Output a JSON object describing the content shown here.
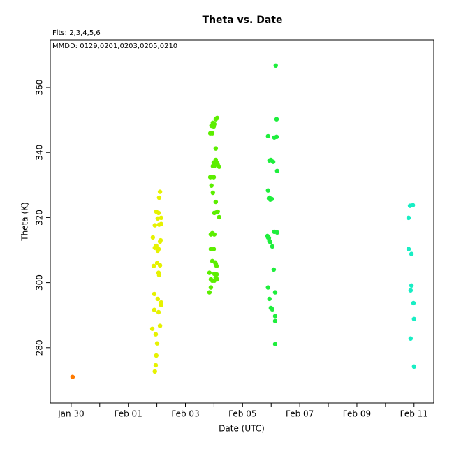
{
  "chart_data": {
    "type": "scatter",
    "title": "Theta  vs. Date",
    "annotations": [
      "Flts: 2,3,4,5,6",
      "MMDD: 0129,0201,0203,0205,0210"
    ],
    "x_label": "Date (UTC)",
    "y_label": "Theta (K)",
    "xlim": [
      29.27,
      42.69
    ],
    "ylim": [
      263.0,
      374.6
    ],
    "xticks": [
      {
        "value": 30,
        "label": "Jan 30"
      },
      {
        "value": 32,
        "label": "Feb 01"
      },
      {
        "value": 34,
        "label": "Feb 03"
      },
      {
        "value": 36,
        "label": "Feb 05"
      },
      {
        "value": 38,
        "label": "Feb 07"
      },
      {
        "value": 40,
        "label": "Feb 09"
      },
      {
        "value": 42,
        "label": "Feb 11"
      }
    ],
    "xminor_ticks": [
      31,
      33,
      35,
      37,
      39,
      41
    ],
    "yticks": [
      280,
      300,
      320,
      340,
      360
    ],
    "series": [
      {
        "color": "#ff7a00",
        "x": [
          30.05
        ],
        "values": [
          271.0
        ]
      },
      {
        "color": "#e6f200",
        "x": [
          33.11,
          33.08,
          32.98,
          33.06,
          33.15,
          33.03,
          32.93,
          33.08,
          33.15,
          32.86,
          33.11,
          33.13,
          32.98,
          32.93,
          33.03,
          33.06,
          33.01,
          32.89,
          33.11,
          33.06,
          33.08,
          32.91,
          33.03,
          33.15,
          33.15,
          32.91,
          33.06,
          33.11,
          32.84,
          32.96,
          33.01,
          32.98,
          32.96,
          32.93
        ],
        "values": [
          327.9,
          326.1,
          321.8,
          321.4,
          319.9,
          319.7,
          317.6,
          317.8,
          318.0,
          313.9,
          312.6,
          313.0,
          311.3,
          310.7,
          309.8,
          310.3,
          306.0,
          305.1,
          305.3,
          303.0,
          302.3,
          296.5,
          295.0,
          293.9,
          293.1,
          291.6,
          290.9,
          286.7,
          285.8,
          284.1,
          281.3,
          277.6,
          274.6,
          272.7
        ]
      },
      {
        "color": "#5cee00",
        "x": [
          35.11,
          35.06,
          34.96,
          35.01,
          34.91,
          34.99,
          34.87,
          34.94,
          35.06,
          35.06,
          34.99,
          35.09,
          35.13,
          35.01,
          35.18,
          34.96,
          34.87,
          34.99,
          34.91,
          34.96,
          35.06,
          35.09,
          35.01,
          35.13,
          35.18,
          34.94,
          34.89,
          35.01,
          34.99,
          34.89,
          34.94,
          35.06,
          35.09,
          35.04,
          34.84,
          35.01,
          35.09,
          34.89,
          35.06,
          35.11,
          35.01,
          34.94,
          34.89,
          34.84
        ],
        "values": [
          350.6,
          350.2,
          349.1,
          348.7,
          348.2,
          348.0,
          345.9,
          345.9,
          341.2,
          337.7,
          336.9,
          336.9,
          336.2,
          335.8,
          335.6,
          335.8,
          332.4,
          332.4,
          329.8,
          327.6,
          324.8,
          321.6,
          321.4,
          321.8,
          320.1,
          315.2,
          314.8,
          314.8,
          310.3,
          310.3,
          306.6,
          305.8,
          305.1,
          306.2,
          303.0,
          302.7,
          302.5,
          301.0,
          301.5,
          301.0,
          300.6,
          300.6,
          298.5,
          297.0
        ]
      },
      {
        "color": "#1eee3c",
        "x": [
          37.16,
          37.19,
          37.19,
          37.11,
          36.89,
          36.99,
          36.94,
          37.07,
          37.21,
          36.89,
          36.97,
          36.92,
          37.02,
          36.94,
          37.11,
          37.21,
          36.87,
          36.89,
          36.94,
          36.92,
          36.97,
          37.04,
          37.09,
          36.89,
          37.14,
          36.94,
          36.99,
          37.04,
          37.14,
          37.14,
          37.14
        ],
        "values": [
          366.7,
          350.2,
          344.8,
          344.6,
          345.0,
          337.7,
          337.5,
          337.1,
          334.3,
          328.3,
          325.5,
          325.9,
          325.7,
          326.1,
          315.6,
          315.4,
          314.3,
          313.9,
          312.8,
          313.7,
          312.4,
          311.1,
          304.0,
          298.5,
          297.0,
          295.0,
          292.2,
          291.8,
          289.7,
          288.2,
          281.1
        ]
      },
      {
        "color": "#18eec4",
        "x": [
          41.86,
          41.96,
          41.81,
          41.81,
          41.91,
          41.91,
          41.88,
          41.98,
          42.0,
          41.88,
          42.0
        ],
        "values": [
          323.6,
          323.8,
          319.9,
          310.3,
          308.8,
          299.1,
          297.6,
          293.7,
          288.8,
          282.8,
          274.2
        ]
      }
    ]
  }
}
